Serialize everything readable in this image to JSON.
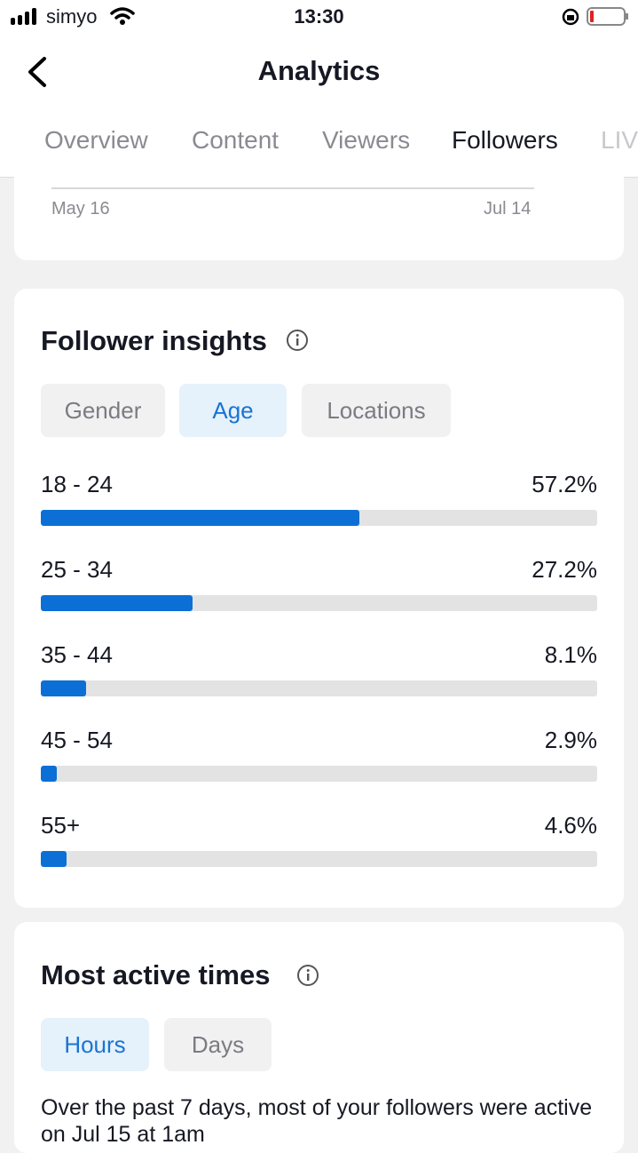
{
  "status_bar": {
    "carrier": "simyo",
    "time": "13:30"
  },
  "header": {
    "title": "Analytics"
  },
  "tabs": [
    "Overview",
    "Content",
    "Viewers",
    "Followers",
    "LIVE"
  ],
  "followers_chart": {
    "x_labels": [
      "May 16",
      "Jul 14"
    ]
  },
  "follower_insights": {
    "title": "Follower insights",
    "filters": [
      "Gender",
      "Age",
      "Locations"
    ],
    "age_chart": {
      "type": "bar",
      "categories": [
        "18 - 24",
        "25 - 34",
        "35 - 44",
        "45 - 54",
        "55+"
      ],
      "values": [
        57.2,
        27.2,
        8.1,
        2.9,
        4.6
      ],
      "value_labels": [
        "57.2%",
        "27.2%",
        "8.1%",
        "2.9%",
        "4.6%"
      ],
      "xlim": [
        0,
        100
      ],
      "color": "#0b6fd6"
    }
  },
  "most_active_times": {
    "title": "Most active times",
    "filters": [
      "Hours",
      "Days"
    ],
    "summary": "Over the past 7 days, most of your followers were active on Jul 15 at 1am"
  }
}
